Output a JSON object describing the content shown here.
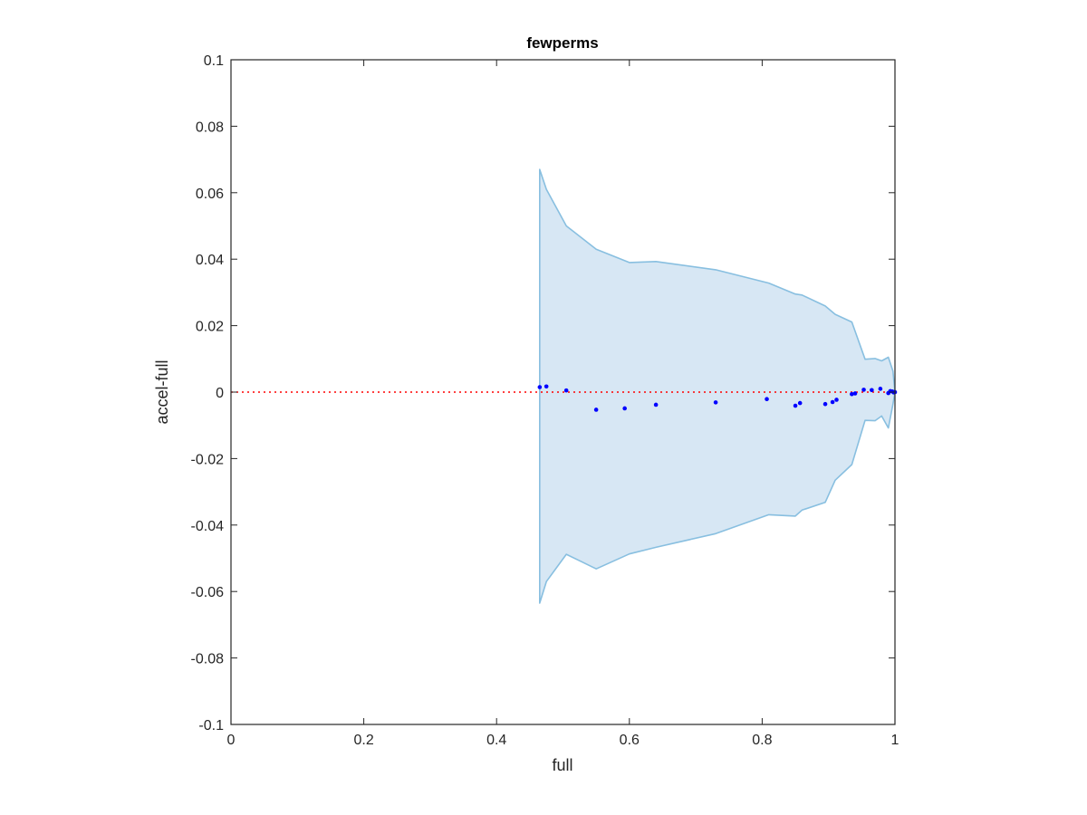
{
  "figure": {
    "title": "fewperms",
    "xlabel": "full",
    "ylabel": "accel-full"
  },
  "colors": {
    "band_fill": "#d7e7f4",
    "band_edge": "#88bfe0",
    "points": "#0000ff",
    "zero_line": "#ff0000",
    "axes": "#262626"
  },
  "chart_data": {
    "type": "scatter",
    "title": "fewperms",
    "xlabel": "full",
    "ylabel": "accel-full",
    "xlim": [
      0,
      1
    ],
    "ylim": [
      -0.1,
      0.1
    ],
    "xticks": [
      0,
      0.2,
      0.4,
      0.6,
      0.8,
      1
    ],
    "xtick_labels": [
      "0",
      "0.2",
      "0.4",
      "0.6",
      "0.8",
      "1"
    ],
    "yticks": [
      -0.1,
      -0.08,
      -0.06,
      -0.04,
      -0.02,
      0,
      0.02,
      0.04,
      0.06,
      0.08,
      0.1
    ],
    "ytick_labels": [
      "-0.1",
      "-0.08",
      "-0.06",
      "-0.04",
      "-0.02",
      "0",
      "0.02",
      "0.04",
      "0.06",
      "0.08",
      "0.1"
    ],
    "grid": false,
    "box": true,
    "reference_line": {
      "y": 0,
      "style": "dotted"
    },
    "band_upper": {
      "x": [
        0.465,
        0.475,
        0.505,
        0.55,
        0.6,
        0.64,
        0.73,
        0.81,
        0.85,
        0.86,
        0.895,
        0.91,
        0.935,
        0.955,
        0.97,
        0.98,
        0.99,
        0.997,
        1.0
      ],
      "y": [
        0.067,
        0.061,
        0.05,
        0.043,
        0.039,
        0.0393,
        0.0368,
        0.0328,
        0.0295,
        0.0292,
        0.0259,
        0.0234,
        0.0211,
        0.0099,
        0.0101,
        0.0094,
        0.0105,
        0.0063,
        0.0
      ]
    },
    "band_lower": {
      "x": [
        0.465,
        0.475,
        0.505,
        0.55,
        0.6,
        0.64,
        0.73,
        0.81,
        0.85,
        0.86,
        0.895,
        0.91,
        0.935,
        0.955,
        0.97,
        0.98,
        0.99,
        0.997,
        1.0
      ],
      "y": [
        -0.0635,
        -0.057,
        -0.0488,
        -0.0532,
        -0.0487,
        -0.0467,
        -0.0426,
        -0.0369,
        -0.0373,
        -0.0355,
        -0.0332,
        -0.0265,
        -0.0218,
        -0.0085,
        -0.0086,
        -0.0072,
        -0.0108,
        -0.0036,
        0.0
      ]
    },
    "points": {
      "x": [
        0.465,
        0.475,
        0.505,
        0.55,
        0.593,
        0.64,
        0.73,
        0.807,
        0.85,
        0.857,
        0.895,
        0.906,
        0.912,
        0.935,
        0.94,
        0.953,
        0.965,
        0.978,
        0.99,
        0.993,
        0.996,
        0.998,
        1.0
      ],
      "y": [
        0.0015,
        0.0017,
        0.0005,
        -0.0053,
        -0.0049,
        -0.0038,
        -0.0031,
        -0.0021,
        -0.0041,
        -0.0033,
        -0.0036,
        -0.003,
        -0.0023,
        -0.0006,
        -0.0004,
        0.0007,
        0.0006,
        0.001,
        -0.0003,
        0.0003,
        0.0002,
        -0.0001,
        0.0
      ]
    }
  }
}
